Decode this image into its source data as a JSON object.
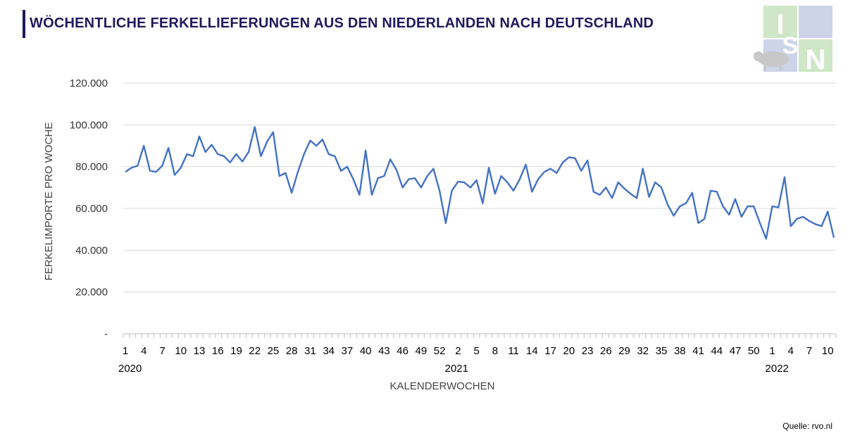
{
  "header": {
    "title": "WÖCHENTLICHE FERKELLIEFERUNGEN AUS DEN NIEDERLANDEN NACH DEUTSCHLAND",
    "accent_color": "#1f1a5c"
  },
  "logo": {
    "letters": [
      "I",
      "S",
      "N"
    ],
    "icon": "pig-icon"
  },
  "source": "Quelle: rvo.nl",
  "chart_data": {
    "type": "line",
    "title": "WÖCHENTLICHE FERKELLIEFERUNGEN AUS DEN NIEDERLANDEN NACH DEUTSCHLAND",
    "xlabel": "KALENDERWOCHEN",
    "ylabel": "FERKELIMPORTE PRO WOCHE",
    "ylim": [
      0,
      120000
    ],
    "yticks": [
      0,
      20000,
      40000,
      60000,
      80000,
      100000,
      120000
    ],
    "ytick_labels": [
      "-",
      "20.000",
      "40.000",
      "60.000",
      "80.000",
      "100.000",
      "120.000"
    ],
    "grid": true,
    "line_color": "#4472c4",
    "x_tick_labels": [
      "1",
      "4",
      "7",
      "10",
      "13",
      "16",
      "19",
      "22",
      "25",
      "28",
      "31",
      "34",
      "37",
      "40",
      "43",
      "46",
      "49",
      "52",
      "2",
      "5",
      "8",
      "11",
      "14",
      "17",
      "20",
      "23",
      "26",
      "29",
      "32",
      "35",
      "38",
      "41",
      "44",
      "47",
      "50",
      "1",
      "4",
      "7",
      "10"
    ],
    "years": [
      {
        "label": "2020",
        "start_index": 0
      },
      {
        "label": "2021",
        "start_index": 53
      },
      {
        "label": "2022",
        "start_index": 105
      }
    ],
    "series": [
      {
        "values": [
          77500,
          79500,
          80500,
          90000,
          78000,
          77500,
          80500,
          89000,
          76000,
          79500,
          86000,
          85000,
          94500,
          87000,
          90500,
          86000,
          85000,
          82000,
          86000,
          82500,
          87000,
          99000,
          85000,
          92000,
          96500,
          75500,
          77000,
          67500,
          77500,
          86000,
          92500,
          90000,
          93000,
          86000,
          85000,
          78000,
          80000,
          74000,
          66500,
          87700,
          66500,
          74500,
          75500,
          83500,
          78500,
          70000,
          74000,
          74500,
          70000,
          75500,
          79000,
          68500,
          53000,
          68500,
          72800,
          72500,
          70000,
          73500,
          62500,
          79500,
          67000,
          75500,
          72500,
          68500,
          74000,
          81000,
          68000,
          74000,
          77500,
          79000,
          77000,
          82000,
          84500,
          84000,
          78000,
          83000,
          68000,
          66500,
          70000,
          65000,
          72500,
          69500,
          67000,
          65000,
          79000,
          65500,
          72500,
          70000,
          62000,
          56500,
          61000,
          62500,
          67500,
          53000,
          55000,
          68500,
          68000,
          61000,
          57000,
          64500,
          56000,
          61000,
          61000,
          53000,
          45500,
          61000,
          60500,
          75000,
          51500,
          55000,
          56000,
          54000,
          52500,
          51500,
          58500,
          46000
        ]
      }
    ]
  }
}
